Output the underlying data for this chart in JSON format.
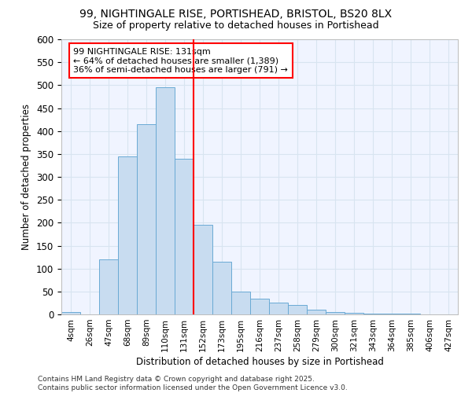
{
  "title_line1": "99, NIGHTINGALE RISE, PORTISHEAD, BRISTOL, BS20 8LX",
  "title_line2": "Size of property relative to detached houses in Portishead",
  "xlabel": "Distribution of detached houses by size in Portishead",
  "ylabel": "Number of detached properties",
  "footnote": "Contains HM Land Registry data © Crown copyright and database right 2025.\nContains public sector information licensed under the Open Government Licence v3.0.",
  "annotation_title": "99 NIGHTINGALE RISE: 131sqm",
  "annotation_line1": "← 64% of detached houses are smaller (1,389)",
  "annotation_line2": "36% of semi-detached houses are larger (791) →",
  "bar_color": "#c8dcf0",
  "bar_edge_color": "#6aaad4",
  "vline_color": "red",
  "categories": [
    "4sqm",
    "26sqm",
    "47sqm",
    "68sqm",
    "89sqm",
    "110sqm",
    "131sqm",
    "152sqm",
    "173sqm",
    "195sqm",
    "216sqm",
    "237sqm",
    "258sqm",
    "279sqm",
    "300sqm",
    "321sqm",
    "343sqm",
    "364sqm",
    "385sqm",
    "406sqm",
    "427sqm"
  ],
  "values": [
    5,
    0,
    120,
    345,
    415,
    495,
    340,
    195,
    115,
    50,
    35,
    25,
    20,
    10,
    5,
    3,
    2,
    1,
    1,
    0,
    0
  ],
  "vline_idx": 6,
  "ylim": [
    0,
    600
  ],
  "yticks": [
    0,
    50,
    100,
    150,
    200,
    250,
    300,
    350,
    400,
    450,
    500,
    550,
    600
  ],
  "grid_color": "#d8e4f0",
  "background_color": "#f0f4ff",
  "title_fontsize": 10,
  "subtitle_fontsize": 9,
  "footnote_fontsize": 6.5
}
